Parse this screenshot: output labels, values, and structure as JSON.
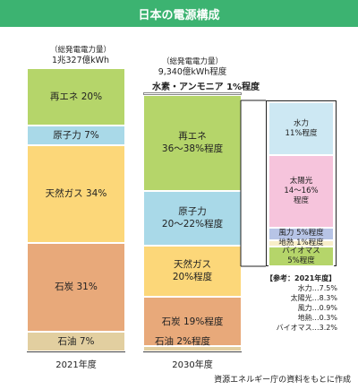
{
  "title": "日本の電源構成",
  "source": "資源エネルギー庁の資料をもとに作成",
  "colors": {
    "title_bg": "#3cb371",
    "renewable": "#b5d56a",
    "nuclear": "#a9d9e8",
    "gas": "#fcd779",
    "coal": "#e8a97a",
    "oil": "#e2cfa0",
    "hydrogen": "#ffffff",
    "hydro": "#cde8f3",
    "solar": "#f6c4dc",
    "wind": "#b7c4e6",
    "geothermal": "#f8eec8",
    "biomass": "#b5d56a"
  },
  "chart_data": {
    "type": "bar",
    "stacked": true,
    "categories": [
      "2021年度",
      "2030年度"
    ],
    "totals": [
      {
        "caption": "（総発電電力量）",
        "value": "1兆327億kWh"
      },
      {
        "caption": "（総発電電力量）",
        "value": "9,340億kWh程度"
      }
    ],
    "bars": [
      {
        "year": "2021年度",
        "segments": [
          {
            "key": "renewable",
            "label": "再エネ 20%",
            "value": 20
          },
          {
            "key": "nuclear",
            "label": "原子力 7%",
            "value": 7
          },
          {
            "key": "gas",
            "label": "天然ガス 34%",
            "value": 34
          },
          {
            "key": "coal",
            "label": "石炭 31%",
            "value": 31
          },
          {
            "key": "oil",
            "label": "石油 7%",
            "value": 7
          }
        ]
      },
      {
        "year": "2030年度",
        "top_label": "水素・アンモニア 1%程度",
        "segments": [
          {
            "key": "hydrogen",
            "label": "",
            "value": 1
          },
          {
            "key": "renewable",
            "label_lines": [
              "再エネ",
              "36～38%程度"
            ],
            "value": 37
          },
          {
            "key": "nuclear",
            "label_lines": [
              "原子力",
              "20～22%程度"
            ],
            "value": 21
          },
          {
            "key": "gas",
            "label_lines": [
              "天然ガス",
              "20%程度"
            ],
            "value": 20
          },
          {
            "key": "coal",
            "label_lines": [
              "石炭 19%程度"
            ],
            "value": 19
          },
          {
            "key": "oil",
            "label_lines": [
              "石油 2%程度"
            ],
            "value": 2
          }
        ]
      }
    ],
    "renewable_breakdown_2030": [
      {
        "key": "hydro",
        "label_lines": [
          "水力",
          "11%程度"
        ],
        "value": 11
      },
      {
        "key": "solar",
        "label_lines": [
          "太陽光",
          "14～16%",
          "程度"
        ],
        "value": 15
      },
      {
        "key": "wind",
        "label_lines": [
          "風力 5%程度"
        ],
        "value": 5
      },
      {
        "key": "geothermal",
        "label_lines": [
          "地熱 1%程度"
        ],
        "value": 1
      },
      {
        "key": "biomass",
        "label_lines": [
          "バイオマス",
          "5%程度"
        ],
        "value": 5
      }
    ],
    "reference_2021": {
      "heading": "【参考：2021年度】",
      "rows": [
        "水力…7.5%",
        "太陽光…8.3%",
        "風力…0.9%",
        "地熱…0.3%",
        "バイオマス…3.2%"
      ]
    }
  }
}
